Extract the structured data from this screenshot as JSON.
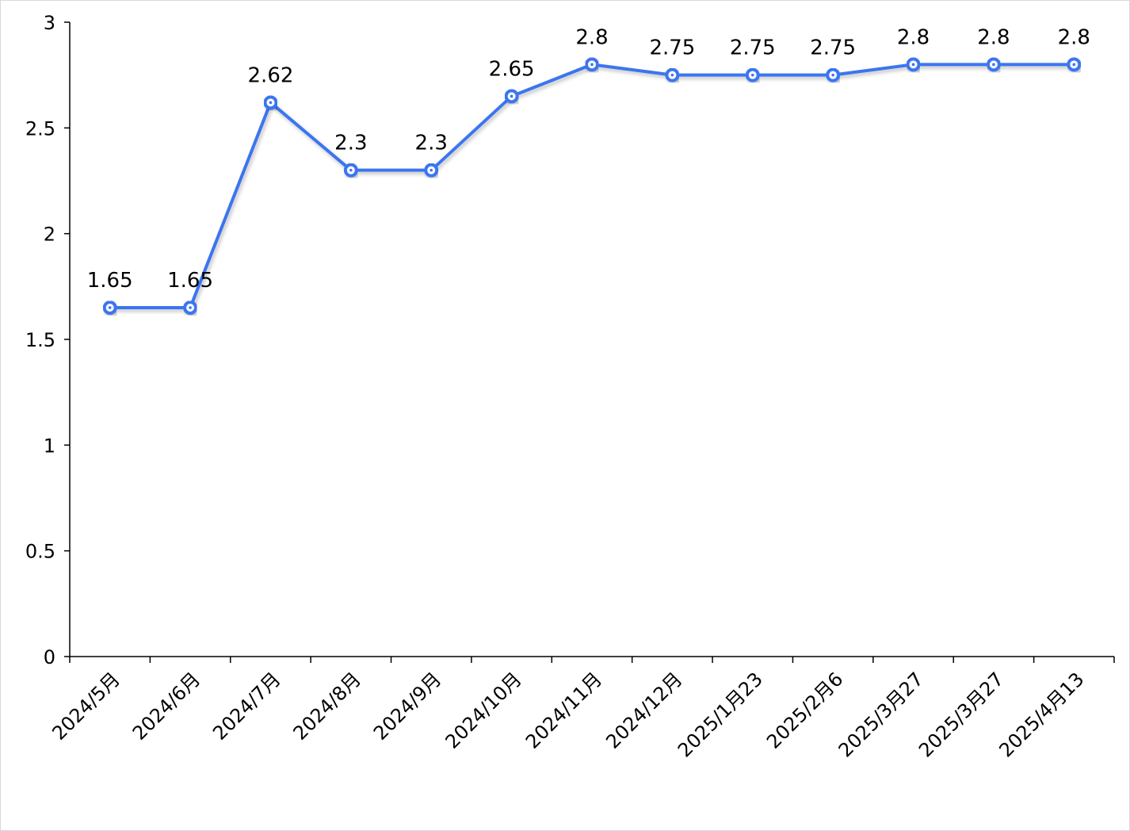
{
  "chart_data": {
    "type": "line",
    "title": "",
    "xlabel": "",
    "ylabel": "",
    "categories": [
      "2024/5月",
      "2024/6月",
      "2024/7月",
      "2024/8月",
      "2024/9月",
      "2024/10月",
      "2024/11月",
      "2024/12月",
      "2025/1月23",
      "2025/2月6",
      "2025/3月27",
      "2025/3月27",
      "2025/4月13"
    ],
    "series": [
      {
        "values": [
          1.65,
          1.65,
          2.62,
          2.3,
          2.3,
          2.65,
          2.8,
          2.75,
          2.75,
          2.75,
          2.8,
          2.8,
          2.8
        ]
      }
    ],
    "ylim": [
      0,
      3
    ],
    "yticks": [
      0,
      0.5,
      1,
      1.5,
      2,
      2.5,
      3
    ],
    "grid": false,
    "legend": "none",
    "data_labels": true,
    "line_color": "#3a75f0"
  }
}
